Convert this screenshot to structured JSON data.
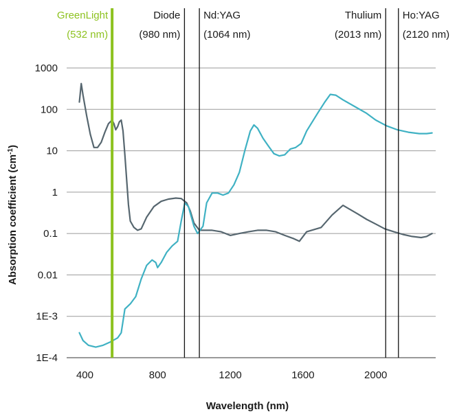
{
  "chart_data": {
    "type": "line",
    "xlabel": "Wavelength (nm)",
    "ylabel_main": "Absorption coefficient (cm",
    "ylabel_sup": "-1",
    "ylabel_close": ")",
    "y_scale": "log",
    "xlim": [
      300,
      2330
    ],
    "ylim": [
      0.0001,
      1000
    ],
    "grid": "horizontal",
    "x_ticks": [
      {
        "value": 400,
        "label": "400"
      },
      {
        "value": 800,
        "label": "800"
      },
      {
        "value": 1200,
        "label": "1200"
      },
      {
        "value": 1600,
        "label": "1600"
      },
      {
        "value": 2000,
        "label": "2000"
      }
    ],
    "y_ticks": [
      {
        "value": 1000,
        "label": "1000"
      },
      {
        "value": 100,
        "label": "100"
      },
      {
        "value": 10,
        "label": "10"
      },
      {
        "value": 1,
        "label": "1"
      },
      {
        "value": 0.1,
        "label": "0.1"
      },
      {
        "value": 0.01,
        "label": "0.01"
      },
      {
        "value": 0.001,
        "label": "1E-3"
      },
      {
        "value": 0.0001,
        "label": "1E-4"
      }
    ],
    "laser_lines": [
      {
        "line1": "GreenLight",
        "line2": "(532 nm)",
        "x": 550,
        "color": "#8dc21f",
        "label_side": "left"
      },
      {
        "line1": "Diode",
        "line2": "(980 nm)",
        "x": 948,
        "color": "#111111",
        "label_side": "left"
      },
      {
        "line1": "Nd:YAG",
        "line2": "(1064 nm)",
        "x": 1030,
        "color": "#111111",
        "label_side": "right"
      },
      {
        "line1": "Thulium",
        "line2": "(2013 nm)",
        "x": 2055,
        "color": "#111111",
        "label_side": "left"
      },
      {
        "line1": "Ho:YAG",
        "line2": "(2120 nm)",
        "x": 2125,
        "color": "#111111",
        "label_side": "right"
      }
    ],
    "series": [
      {
        "color": "#56666f",
        "points": [
          [
            370,
            150
          ],
          [
            380,
            420
          ],
          [
            390,
            220
          ],
          [
            410,
            70
          ],
          [
            430,
            25
          ],
          [
            450,
            12
          ],
          [
            470,
            12
          ],
          [
            490,
            16
          ],
          [
            510,
            28
          ],
          [
            530,
            45
          ],
          [
            550,
            55
          ],
          [
            560,
            45
          ],
          [
            570,
            32
          ],
          [
            580,
            38
          ],
          [
            590,
            50
          ],
          [
            600,
            55
          ],
          [
            610,
            30
          ],
          [
            620,
            8
          ],
          [
            630,
            2
          ],
          [
            640,
            0.5
          ],
          [
            650,
            0.2
          ],
          [
            670,
            0.14
          ],
          [
            690,
            0.12
          ],
          [
            710,
            0.13
          ],
          [
            740,
            0.25
          ],
          [
            780,
            0.45
          ],
          [
            820,
            0.6
          ],
          [
            860,
            0.68
          ],
          [
            900,
            0.72
          ],
          [
            930,
            0.7
          ],
          [
            960,
            0.55
          ],
          [
            980,
            0.35
          ],
          [
            1000,
            0.18
          ],
          [
            1030,
            0.12
          ],
          [
            1100,
            0.12
          ],
          [
            1150,
            0.11
          ],
          [
            1200,
            0.09
          ],
          [
            1250,
            0.1
          ],
          [
            1300,
            0.11
          ],
          [
            1350,
            0.12
          ],
          [
            1400,
            0.12
          ],
          [
            1450,
            0.11
          ],
          [
            1500,
            0.09
          ],
          [
            1550,
            0.075
          ],
          [
            1580,
            0.065
          ],
          [
            1620,
            0.11
          ],
          [
            1700,
            0.14
          ],
          [
            1760,
            0.28
          ],
          [
            1820,
            0.48
          ],
          [
            1900,
            0.3
          ],
          [
            1950,
            0.22
          ],
          [
            2000,
            0.17
          ],
          [
            2050,
            0.13
          ],
          [
            2100,
            0.11
          ],
          [
            2150,
            0.095
          ],
          [
            2200,
            0.085
          ],
          [
            2250,
            0.08
          ],
          [
            2280,
            0.085
          ],
          [
            2310,
            0.1
          ]
        ]
      },
      {
        "color": "#3fb1c3",
        "points": [
          [
            370,
            0.0004
          ],
          [
            390,
            0.00026
          ],
          [
            420,
            0.0002
          ],
          [
            460,
            0.00018
          ],
          [
            500,
            0.0002
          ],
          [
            540,
            0.00024
          ],
          [
            580,
            0.0003
          ],
          [
            600,
            0.0004
          ],
          [
            620,
            0.0015
          ],
          [
            650,
            0.002
          ],
          [
            680,
            0.003
          ],
          [
            710,
            0.008
          ],
          [
            740,
            0.017
          ],
          [
            770,
            0.023
          ],
          [
            790,
            0.02
          ],
          [
            800,
            0.015
          ],
          [
            820,
            0.02
          ],
          [
            850,
            0.035
          ],
          [
            880,
            0.05
          ],
          [
            910,
            0.065
          ],
          [
            930,
            0.2
          ],
          [
            950,
            0.55
          ],
          [
            970,
            0.45
          ],
          [
            1000,
            0.15
          ],
          [
            1020,
            0.1
          ],
          [
            1050,
            0.15
          ],
          [
            1070,
            0.55
          ],
          [
            1100,
            0.95
          ],
          [
            1130,
            0.95
          ],
          [
            1160,
            0.85
          ],
          [
            1190,
            0.95
          ],
          [
            1220,
            1.5
          ],
          [
            1250,
            3
          ],
          [
            1280,
            10
          ],
          [
            1310,
            30
          ],
          [
            1330,
            42
          ],
          [
            1350,
            35
          ],
          [
            1380,
            20
          ],
          [
            1410,
            13
          ],
          [
            1440,
            8.5
          ],
          [
            1470,
            7.5
          ],
          [
            1500,
            8
          ],
          [
            1530,
            11
          ],
          [
            1560,
            12
          ],
          [
            1590,
            15
          ],
          [
            1620,
            30
          ],
          [
            1680,
            80
          ],
          [
            1720,
            150
          ],
          [
            1750,
            230
          ],
          [
            1780,
            220
          ],
          [
            1820,
            170
          ],
          [
            1880,
            120
          ],
          [
            1950,
            80
          ],
          [
            2000,
            55
          ],
          [
            2060,
            40
          ],
          [
            2120,
            32
          ],
          [
            2180,
            28
          ],
          [
            2240,
            26
          ],
          [
            2280,
            26
          ],
          [
            2310,
            27
          ]
        ]
      }
    ]
  }
}
